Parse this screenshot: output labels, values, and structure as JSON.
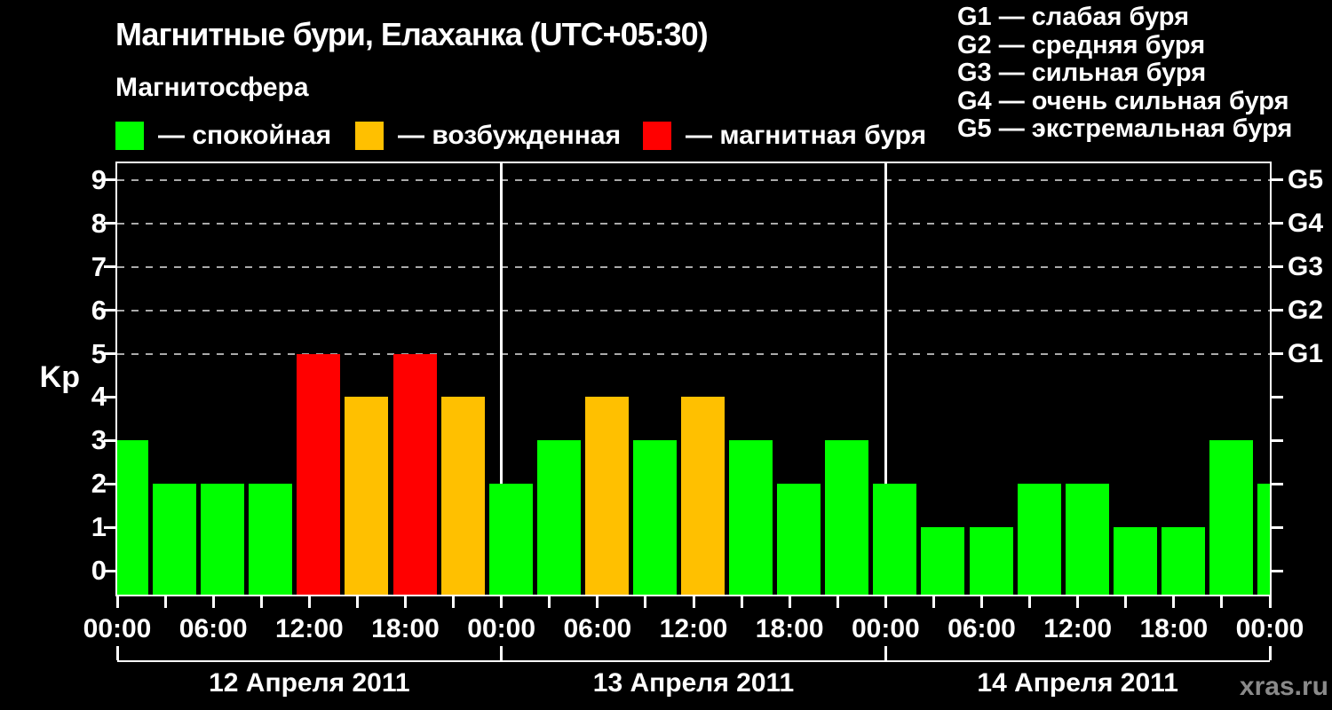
{
  "title": "Магнитные бури, Елаханка (UTC+05:30)",
  "subtitle": "Магнитосфера",
  "legend": {
    "items": [
      {
        "name": "quiet",
        "label": "— спокойная",
        "color": "#00ff00"
      },
      {
        "name": "excited",
        "label": "— возбужденная",
        "color": "#ffc000"
      },
      {
        "name": "storm",
        "label": "— магнитная буря",
        "color": "#ff0000"
      }
    ]
  },
  "g_legend": {
    "separator": " — ",
    "items": [
      {
        "code": "G1",
        "label": "слабая буря"
      },
      {
        "code": "G2",
        "label": "средняя буря"
      },
      {
        "code": "G3",
        "label": "сильная буря"
      },
      {
        "code": "G4",
        "label": "очень сильная буря"
      },
      {
        "code": "G5",
        "label": "экстремальная буря"
      }
    ]
  },
  "watermark": "xras.ru",
  "chart_data": {
    "type": "bar",
    "title": "Магнитные бури, Елаханка (UTC+05:30)",
    "subtitle": "Магнитосфера",
    "ylabel": "Kp",
    "ylim": [
      0,
      9
    ],
    "y_ticks": [
      0,
      1,
      2,
      3,
      4,
      5,
      6,
      7,
      8,
      9
    ],
    "grid": {
      "style": "dashed",
      "levels": [
        5,
        6,
        7,
        8,
        9
      ]
    },
    "right_axis": {
      "labels": [
        "G1",
        "G2",
        "G3",
        "G4",
        "G5"
      ],
      "at_kp": [
        5,
        6,
        7,
        8,
        9
      ]
    },
    "x_tick_interval_hours": 3,
    "x_label_interval_hours": 6,
    "x_labels": [
      "00:00",
      "06:00",
      "12:00",
      "18:00",
      "00:00",
      "06:00",
      "12:00",
      "18:00",
      "00:00",
      "06:00",
      "12:00",
      "18:00",
      "00:00"
    ],
    "days": [
      {
        "label": "12 Апреля 2011",
        "kp": [
          3,
          2,
          2,
          2,
          5,
          4,
          5,
          4
        ]
      },
      {
        "label": "13 Апреля 2011",
        "kp": [
          2,
          3,
          4,
          3,
          4,
          3,
          2,
          3
        ]
      },
      {
        "label": "14 Апреля 2011",
        "kp": [
          2,
          1,
          1,
          2,
          2,
          1,
          1,
          3
        ]
      }
    ],
    "next_partial_bar_kp": 2,
    "color_rules": {
      "quiet_max": 3,
      "excited_kp": 4,
      "storm_min": 5
    },
    "colors": {
      "quiet": "#00ff00",
      "excited": "#ffc000",
      "storm": "#ff0000",
      "grid": "#aaaaaa",
      "axis": "#ffffff",
      "text": "#ffffff",
      "background": "#000000",
      "watermark": "#8a8a8a"
    },
    "legend_position": "top-left"
  }
}
